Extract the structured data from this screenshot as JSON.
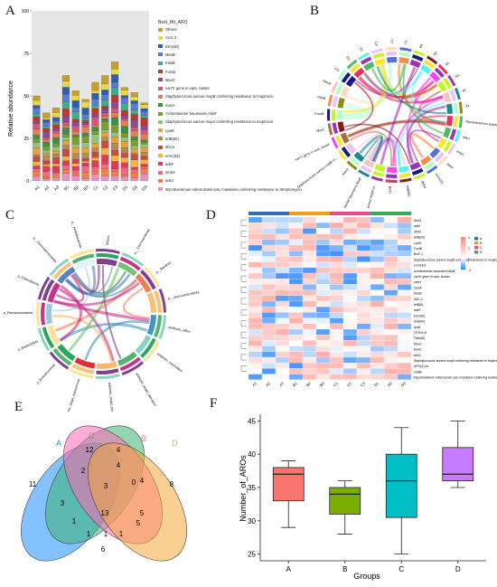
{
  "panel_labels": {
    "a": "A",
    "b": "B",
    "c": "C",
    "d": "D",
    "e": "E",
    "f": "F"
  },
  "panel_a": {
    "legend_title": "Best_Hit_ARO",
    "samples": [
      "A1",
      "A2",
      "A3",
      "B1",
      "B2",
      "B3",
      "C1",
      "C2",
      "C3",
      "D1",
      "D2",
      "D3"
    ],
    "ylabel": "Relative abundance",
    "yticks": [
      "0",
      "25",
      "50",
      "75",
      "100"
    ],
    "categories": [
      {
        "name": "Others",
        "color": "#c6a02a"
      },
      {
        "name": "AAC-2",
        "color": "#e8d94a"
      },
      {
        "name": "Erm(30)",
        "color": "#2f5fa8"
      },
      {
        "name": "MexB",
        "color": "#5b7bd1"
      },
      {
        "name": "mdsB",
        "color": "#3cae8c"
      },
      {
        "name": "FomB",
        "color": "#c0372e"
      },
      {
        "name": "MuxC",
        "color": "#8b4b8d"
      },
      {
        "name": "vanTr gene in vanL cluster",
        "color": "#d05a7c"
      },
      {
        "name": "Staphylococcus aureus mupB conferring resistance to mupirocin",
        "color": "#e07f4f"
      },
      {
        "name": "macA",
        "color": "#3a8f4a"
      },
      {
        "name": "Acinetobacter baumannii AbaF",
        "color": "#7a9f2f"
      },
      {
        "name": "Staphylococcus aureus mupA conferring resistance to mupirocin",
        "color": "#93c27e"
      },
      {
        "name": "LpeB",
        "color": "#e6a33a"
      },
      {
        "name": "tetB(60)",
        "color": "#b08a5a"
      },
      {
        "name": "dfrA3",
        "color": "#c84a40"
      },
      {
        "name": "emrr(32)",
        "color": "#f3b540"
      },
      {
        "name": "adeF",
        "color": "#e03a5a"
      },
      {
        "name": "smeS",
        "color": "#f26a7a"
      },
      {
        "name": "adeJ",
        "color": "#f57f40"
      },
      {
        "name": "Mycobacterium tuberculosis rpsL mutations conferring resistance to Streptomycin",
        "color": "#e391c8"
      }
    ]
  },
  "panel_b": {
    "labels": [
      "Mycobacterium tuberculosis rpsL mu...",
      "adeJ",
      "smeS",
      "adeF",
      "emrr(32)",
      "dfrA3",
      "tetB(60)",
      "LpeB",
      "Staphylococcus aureus mupA co...",
      "Acinetobacter baumannii AbaF",
      "macA",
      "Staphylococcus aureus mupB co...",
      "vanTr gene in vanL cluster",
      "MuxC",
      "FomB",
      "mdsB",
      "MexB",
      "D3",
      "D2",
      "D1",
      "C3",
      "C2",
      "C1",
      "B3",
      "B2",
      "B1",
      "A3",
      "A2",
      "A1"
    ]
  },
  "panel_c": {
    "labels": [
      "antibiotic_efflux",
      "antibiotic_inactivation",
      "antibiotic_target_alteration",
      "antibiotic_target_protection",
      "antibiotic_target_replacement",
      "p_Actinomycetota",
      "p_Bacteroidota",
      "p_Pseudomonadota",
      "p_Chloroflexota",
      "p__Gemmatimonadota",
      "p__Acidobacteriota",
      "Others",
      "p__Thermoproteota",
      "p__Bacillota",
      "p__Verrucomicrobiota"
    ]
  },
  "panel_d": {
    "samples": [
      "A1",
      "A2",
      "A3",
      "B1",
      "B2",
      "B3",
      "C1",
      "C2",
      "C3",
      "D1",
      "D2",
      "D3"
    ],
    "genes": [
      "dfrA3",
      "adeJ",
      "dfrA2",
      "tetB(60)",
      "LpeB",
      "FomB",
      "BcrF-1",
      "Staphylococcus aureus mupB conferring resistance to mupirocin",
      "emrr(32)",
      "Acinetobacter baumannii AbaF",
      "vanTr gene in vanL cluster",
      "vanH",
      "mexA",
      "MexB",
      "AAC-2",
      "tetB(8)",
      "adeF",
      "Erm(30)",
      "tetA(60)",
      "rpoB",
      "OTR-B-B",
      "TetA(W)",
      "MexC",
      "MuxC",
      "tetZ1",
      "Staphylococcus aureus mupA conferring resistance to mupirocin",
      "APH(3')-Ia",
      "mdsB",
      "Mycobacterium tuberculosis rpsL mutations conferring resistance to Streptomycin"
    ],
    "legend_ticks": [
      "4",
      "2",
      "0",
      "-2"
    ],
    "group_keys": [
      "A",
      "B",
      "C",
      "D"
    ],
    "group_colors": [
      "#2f6db5",
      "#f59b1a",
      "#e84a8a",
      "#3aa858"
    ]
  },
  "panel_e": {
    "set_names": [
      "A",
      "C",
      "B",
      "D"
    ],
    "set_colors": [
      "#1e90ff",
      "#3cb371",
      "#ff69b4",
      "#f4a83a"
    ],
    "counts": {
      "A_only": 11,
      "C_only": 12,
      "B_only": 4,
      "D_only": 8,
      "AC": 2,
      "CB": 4,
      "BD": 4,
      "AD": 6,
      "AB": 3,
      "CD": 5,
      "ACB": 1,
      "CBD": 0,
      "ABD": 1,
      "ACD": 5,
      "ACBD": 13,
      "c1": 3,
      "c2": 1,
      "c3": 1
    }
  },
  "chart_data": {
    "type": "box",
    "title": "",
    "xlabel": "Groups",
    "ylabel": "Number_of_AROs",
    "ylim": [
      24,
      46
    ],
    "yticks": [
      25,
      30,
      35,
      40,
      45
    ],
    "categories": [
      "A",
      "B",
      "C",
      "D"
    ],
    "colors": [
      "#f8766d",
      "#7cae00",
      "#00bfc4",
      "#c77cff"
    ],
    "boxes": [
      {
        "group": "A",
        "min": 29,
        "q1": 33,
        "median": 37,
        "q3": 38,
        "max": 39
      },
      {
        "group": "B",
        "min": 28,
        "q1": 31,
        "median": 34,
        "q3": 35,
        "max": 36
      },
      {
        "group": "C",
        "min": 25,
        "q1": 30.5,
        "median": 36,
        "q3": 40,
        "max": 44
      },
      {
        "group": "D",
        "min": 35,
        "q1": 36,
        "median": 37,
        "q3": 41,
        "max": 45
      }
    ]
  }
}
